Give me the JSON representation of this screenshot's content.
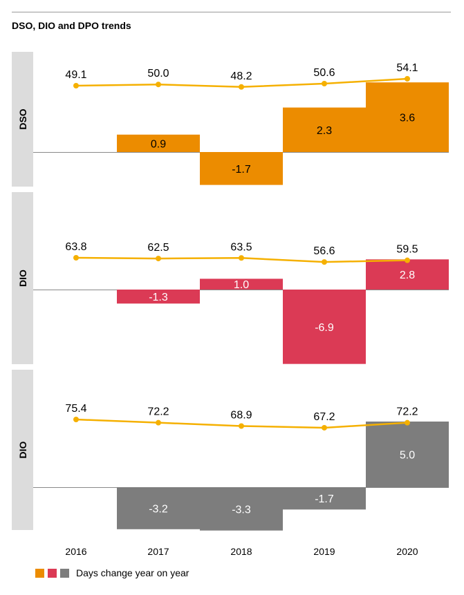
{
  "title": "DSO, DIO and DPO trends",
  "legend": {
    "label": "Days change year on year",
    "colors": [
      "#ec8c00",
      "#db3a55",
      "#7d7d7d"
    ]
  },
  "chart_data": {
    "type": "bar",
    "categories": [
      "2016",
      "2017",
      "2018",
      "2019",
      "2020"
    ],
    "line_color": "#f5b000",
    "panels": [
      {
        "label": "DSO",
        "color": "#ec8c00",
        "label_color": "#000000",
        "line_values": [
          49.1,
          50.0,
          48.2,
          50.6,
          54.1
        ],
        "line_labels": [
          "49.1",
          "50.0",
          "48.2",
          "50.6",
          "54.1"
        ],
        "bar_values": [
          null,
          0.9,
          -1.7,
          2.3,
          3.6
        ],
        "bar_labels": [
          "",
          "0.9",
          "-1.7",
          "2.3",
          "3.6"
        ]
      },
      {
        "label": "DIO",
        "color": "#db3a55",
        "label_color": "#ffffff",
        "line_values": [
          63.8,
          62.5,
          63.5,
          56.6,
          59.5
        ],
        "line_labels": [
          "63.8",
          "62.5",
          "63.5",
          "56.6",
          "59.5"
        ],
        "bar_values": [
          null,
          -1.3,
          1.0,
          -6.9,
          2.8
        ],
        "bar_labels": [
          "",
          "-1.3",
          "1.0",
          "-6.9",
          "2.8"
        ]
      },
      {
        "label": "DIO",
        "color": "#7d7d7d",
        "label_color": "#ffffff",
        "line_values": [
          75.4,
          72.2,
          68.9,
          67.2,
          72.2
        ],
        "line_labels": [
          "75.4",
          "72.2",
          "68.9",
          "67.2",
          "72.2"
        ],
        "bar_values": [
          null,
          -3.2,
          -3.3,
          -1.7,
          5.0
        ],
        "bar_labels": [
          "",
          "-3.2",
          "-3.3",
          "-1.7",
          "5.0"
        ]
      }
    ]
  }
}
